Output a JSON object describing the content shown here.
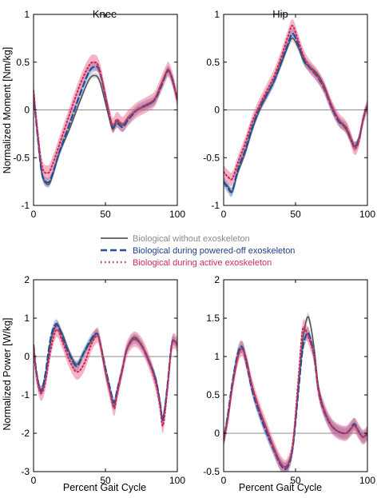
{
  "legend": {
    "entries": [
      {
        "label": "Biological without exoskeleton",
        "color": "#6e6e6e",
        "dash": "solid",
        "text_color": "#8a8a8a"
      },
      {
        "label": "Biological during powered-off exoskeleton",
        "color": "#1f4e9c",
        "dash": "dashed",
        "text_color": "#1f3f8c"
      },
      {
        "label": "Biological during active exoskeleton",
        "color": "#cf2d5a",
        "dash": "dotted",
        "text_color": "#cf2d5a"
      }
    ]
  },
  "chart_data": [
    {
      "type": "line",
      "title": "Knee",
      "ylabel": "Normalized Moment [Nm/kg]",
      "xlabel": "",
      "xlim": [
        0,
        100
      ],
      "ylim": [
        -1,
        1
      ],
      "xticks": [
        "0",
        "50",
        "100"
      ],
      "yticks": [
        "-1",
        "-0.5",
        "0",
        "0.5",
        "1"
      ],
      "zero_line": true,
      "series": [
        {
          "name": "Biological without exoskeleton",
          "band": 0.03,
          "x": [
            0,
            3,
            6,
            10,
            13,
            18,
            25,
            32,
            38,
            42,
            46,
            52,
            55,
            58,
            62,
            66,
            72,
            78,
            84,
            88,
            92,
            94,
            97,
            100
          ],
          "y": [
            0.18,
            -0.3,
            -0.68,
            -0.78,
            -0.7,
            -0.45,
            -0.2,
            0.08,
            0.3,
            0.36,
            0.3,
            -0.05,
            -0.2,
            -0.12,
            -0.16,
            -0.08,
            0.0,
            0.04,
            0.1,
            0.24,
            0.38,
            0.42,
            0.28,
            0.1
          ]
        },
        {
          "name": "Biological during powered-off exoskeleton",
          "band": 0.05,
          "x": [
            0,
            3,
            6,
            10,
            13,
            18,
            25,
            32,
            38,
            42,
            46,
            52,
            55,
            58,
            62,
            66,
            72,
            78,
            84,
            88,
            92,
            94,
            97,
            100
          ],
          "y": [
            0.16,
            -0.3,
            -0.68,
            -0.76,
            -0.68,
            -0.44,
            -0.15,
            0.15,
            0.38,
            0.45,
            0.4,
            0.0,
            -0.18,
            -0.14,
            -0.18,
            -0.1,
            0.0,
            0.05,
            0.1,
            0.22,
            0.37,
            0.41,
            0.3,
            0.1
          ]
        },
        {
          "name": "Biological during active exoskeleton",
          "band": 0.08,
          "x": [
            0,
            3,
            6,
            10,
            13,
            18,
            25,
            32,
            38,
            42,
            46,
            52,
            55,
            58,
            62,
            66,
            72,
            78,
            84,
            88,
            92,
            94,
            97,
            100
          ],
          "y": [
            0.2,
            -0.25,
            -0.6,
            -0.66,
            -0.58,
            -0.36,
            -0.05,
            0.25,
            0.45,
            0.5,
            0.42,
            0.0,
            -0.16,
            -0.1,
            -0.15,
            -0.08,
            0.0,
            0.05,
            0.11,
            0.24,
            0.38,
            0.42,
            0.3,
            0.1
          ]
        }
      ]
    },
    {
      "type": "line",
      "title": "Hip",
      "ylabel": "",
      "xlabel": "",
      "xlim": [
        0,
        100
      ],
      "ylim": [
        -1,
        1
      ],
      "xticks": [
        "0",
        "50",
        "100"
      ],
      "yticks": [
        "-1",
        "-0.5",
        "0",
        "0.5",
        "1"
      ],
      "zero_line": true,
      "series": [
        {
          "name": "Biological without exoskeleton",
          "band": 0.04,
          "x": [
            0,
            3,
            6,
            10,
            15,
            20,
            25,
            30,
            35,
            40,
            45,
            48,
            52,
            56,
            60,
            65,
            70,
            75,
            80,
            85,
            88,
            91,
            94,
            97,
            100
          ],
          "y": [
            -0.75,
            -0.8,
            -0.85,
            -0.65,
            -0.45,
            -0.2,
            0.0,
            0.15,
            0.3,
            0.48,
            0.68,
            0.75,
            0.65,
            0.5,
            0.45,
            0.38,
            0.25,
            0.05,
            -0.1,
            -0.2,
            -0.3,
            -0.38,
            -0.3,
            -0.1,
            0.05
          ]
        },
        {
          "name": "Biological during powered-off exoskeleton",
          "band": 0.05,
          "x": [
            0,
            3,
            6,
            10,
            15,
            20,
            25,
            30,
            35,
            40,
            45,
            48,
            52,
            56,
            60,
            65,
            70,
            75,
            80,
            85,
            88,
            91,
            94,
            97,
            100
          ],
          "y": [
            -0.75,
            -0.82,
            -0.85,
            -0.62,
            -0.42,
            -0.18,
            0.02,
            0.16,
            0.3,
            0.5,
            0.7,
            0.8,
            0.68,
            0.52,
            0.44,
            0.35,
            0.22,
            0.03,
            -0.12,
            -0.18,
            -0.28,
            -0.38,
            -0.32,
            -0.1,
            0.05
          ]
        },
        {
          "name": "Biological during active exoskeleton",
          "band": 0.07,
          "x": [
            0,
            3,
            6,
            10,
            15,
            20,
            25,
            30,
            35,
            40,
            45,
            48,
            52,
            56,
            60,
            65,
            70,
            75,
            80,
            85,
            88,
            91,
            94,
            97,
            100
          ],
          "y": [
            -0.65,
            -0.7,
            -0.72,
            -0.55,
            -0.35,
            -0.12,
            0.05,
            0.2,
            0.35,
            0.55,
            0.78,
            0.88,
            0.72,
            0.55,
            0.45,
            0.36,
            0.23,
            0.04,
            -0.1,
            -0.18,
            -0.28,
            -0.4,
            -0.33,
            -0.1,
            0.05
          ]
        }
      ]
    },
    {
      "type": "line",
      "title": "",
      "ylabel": "Normalized Power [W/kg]",
      "xlabel": "Percent Gait Cycle",
      "xlim": [
        0,
        100
      ],
      "ylim": [
        -3,
        2
      ],
      "xticks": [
        "0",
        "50",
        "100"
      ],
      "yticks": [
        "-3",
        "-2",
        "-1",
        "0",
        "1",
        "2"
      ],
      "zero_line": true,
      "series": [
        {
          "name": "Biological without exoskeleton",
          "band": 0.1,
          "x": [
            0,
            2,
            5,
            8,
            12,
            16,
            20,
            25,
            30,
            35,
            40,
            44,
            46,
            50,
            53,
            56,
            58,
            62,
            65,
            70,
            75,
            80,
            85,
            88,
            90,
            93,
            96,
            98,
            100
          ],
          "y": [
            0.3,
            -0.4,
            -0.9,
            -0.6,
            0.4,
            0.8,
            0.6,
            0.1,
            -0.2,
            0.1,
            0.4,
            0.6,
            0.4,
            -0.4,
            -0.9,
            -1.3,
            -1.0,
            -0.3,
            0.2,
            0.5,
            0.3,
            -0.1,
            -0.6,
            -1.2,
            -1.6,
            -0.8,
            0.3,
            0.4,
            0.3
          ]
        },
        {
          "name": "Biological during powered-off exoskeleton",
          "band": 0.12,
          "x": [
            0,
            2,
            5,
            8,
            12,
            16,
            20,
            25,
            30,
            35,
            40,
            44,
            46,
            50,
            53,
            56,
            58,
            62,
            65,
            70,
            75,
            80,
            85,
            88,
            90,
            93,
            96,
            98,
            100
          ],
          "y": [
            0.3,
            -0.4,
            -0.9,
            -0.5,
            0.5,
            0.85,
            0.5,
            0.05,
            -0.25,
            0.1,
            0.45,
            0.6,
            0.4,
            -0.3,
            -0.8,
            -1.2,
            -0.9,
            -0.3,
            0.2,
            0.45,
            0.3,
            -0.1,
            -0.6,
            -1.2,
            -1.65,
            -0.8,
            0.3,
            0.4,
            0.3
          ]
        },
        {
          "name": "Biological during active exoskeleton",
          "band": 0.2,
          "x": [
            0,
            2,
            5,
            8,
            12,
            16,
            20,
            25,
            30,
            35,
            40,
            44,
            46,
            50,
            53,
            56,
            58,
            62,
            65,
            70,
            75,
            80,
            85,
            88,
            90,
            93,
            96,
            98,
            100
          ],
          "y": [
            0.25,
            -0.5,
            -0.95,
            -0.7,
            0.2,
            0.7,
            0.4,
            -0.1,
            -0.4,
            -0.2,
            0.3,
            0.55,
            0.4,
            -0.4,
            -0.9,
            -1.35,
            -1.0,
            -0.3,
            0.2,
            0.45,
            0.3,
            -0.1,
            -0.7,
            -1.3,
            -1.8,
            -0.9,
            0.25,
            0.4,
            0.3
          ]
        }
      ]
    },
    {
      "type": "line",
      "title": "",
      "ylabel": "",
      "xlabel": "Percent Gait Cycle",
      "xlim": [
        0,
        100
      ],
      "ylim": [
        -0.5,
        2
      ],
      "xticks": [
        "0",
        "50",
        "100"
      ],
      "yticks": [
        "-0.5",
        "0",
        "0.5",
        "1",
        "1.5",
        "2"
      ],
      "zero_line": true,
      "series": [
        {
          "name": "Biological without exoskeleton",
          "band": 0.06,
          "x": [
            0,
            3,
            6,
            10,
            13,
            16,
            20,
            25,
            30,
            35,
            40,
            44,
            48,
            52,
            55,
            58,
            60,
            63,
            66,
            70,
            75,
            80,
            85,
            88,
            91,
            94,
            97,
            100
          ],
          "y": [
            -0.1,
            0.2,
            0.6,
            1.0,
            1.1,
            0.95,
            0.6,
            0.3,
            0.05,
            -0.2,
            -0.4,
            -0.42,
            -0.2,
            0.6,
            1.2,
            1.5,
            1.45,
            1.1,
            0.6,
            0.3,
            0.1,
            0.02,
            0.0,
            0.05,
            0.1,
            0.02,
            -0.05,
            0.0
          ]
        },
        {
          "name": "Biological during powered-off exoskeleton",
          "band": 0.08,
          "x": [
            0,
            3,
            6,
            10,
            13,
            16,
            20,
            25,
            30,
            35,
            40,
            44,
            48,
            52,
            55,
            58,
            60,
            63,
            66,
            70,
            75,
            80,
            85,
            88,
            91,
            94,
            97,
            100
          ],
          "y": [
            -0.1,
            0.25,
            0.65,
            1.05,
            1.12,
            0.9,
            0.55,
            0.25,
            0.0,
            -0.22,
            -0.42,
            -0.45,
            -0.2,
            0.55,
            1.1,
            1.3,
            1.25,
            1.0,
            0.55,
            0.28,
            0.1,
            0.02,
            0.0,
            0.05,
            0.12,
            0.02,
            -0.05,
            0.0
          ]
        },
        {
          "name": "Biological during active exoskeleton",
          "band": 0.1,
          "x": [
            0,
            3,
            6,
            10,
            13,
            16,
            20,
            25,
            30,
            35,
            40,
            44,
            48,
            52,
            55,
            58,
            60,
            63,
            66,
            70,
            75,
            80,
            85,
            88,
            91,
            94,
            97,
            100
          ],
          "y": [
            -0.1,
            0.2,
            0.6,
            1.0,
            1.1,
            0.92,
            0.6,
            0.3,
            0.05,
            -0.2,
            -0.4,
            -0.43,
            -0.15,
            0.7,
            1.35,
            1.3,
            1.2,
            1.0,
            0.55,
            0.3,
            0.1,
            0.02,
            0.0,
            0.05,
            0.1,
            0.02,
            -0.05,
            0.0
          ]
        }
      ]
    }
  ]
}
